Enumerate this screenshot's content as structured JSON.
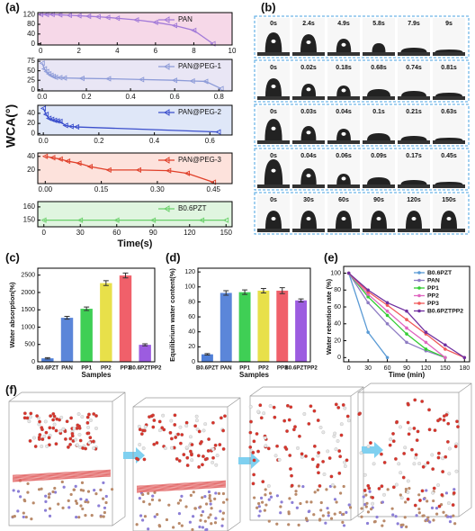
{
  "chart_data": [
    {
      "type": "line",
      "panel": "(a)",
      "ylabel": "WCA(°)",
      "background": "#f6d8e8",
      "x": [
        0,
        0.3,
        0.6,
        1,
        1.5,
        2,
        2.5,
        3,
        3.5,
        4,
        5,
        6,
        7,
        8,
        9
      ],
      "series": [
        {
          "name": "PAN",
          "color": "#a27ad8",
          "values": [
            120,
            120,
            120,
            119,
            117,
            115,
            113,
            111,
            108,
            105,
            98,
            88,
            75,
            55,
            0
          ]
        }
      ],
      "xlim": [
        -0.15,
        10
      ],
      "ylim": [
        -5,
        128
      ],
      "xticks": [
        0,
        2,
        4,
        6,
        8,
        10
      ],
      "yticks": [
        0,
        40,
        80,
        120
      ]
    },
    {
      "type": "line",
      "background": "#e9e6f5",
      "x": [
        0,
        0.01,
        0.02,
        0.03,
        0.04,
        0.05,
        0.06,
        0.08,
        0.1,
        0.18,
        0.3,
        0.45,
        0.6,
        0.68,
        0.74,
        0.81
      ],
      "series": [
        {
          "name": "PAN@PEG-1",
          "color": "#8d9bd8",
          "values": [
            70,
            55,
            48,
            42,
            38,
            35,
            33,
            32,
            31,
            30,
            29,
            27,
            25,
            23,
            22,
            3
          ]
        }
      ],
      "xlim": [
        -0.02,
        0.86
      ],
      "ylim": [
        -3,
        80
      ],
      "xticks": [
        {
          "value": 0,
          "label": "0.0"
        },
        0.2,
        0.4,
        0.6,
        0.8
      ],
      "yticks": [
        0,
        25,
        50,
        75
      ]
    },
    {
      "type": "line",
      "background": "#dfe7f8",
      "x": [
        0,
        0.01,
        0.02,
        0.03,
        0.04,
        0.05,
        0.06,
        0.08,
        0.1,
        0.12,
        0.63
      ],
      "series": [
        {
          "name": "PAN@PEG-2",
          "color": "#3b4fcc",
          "values": [
            50,
            38,
            30,
            28,
            26,
            25,
            24,
            16,
            14,
            13,
            3
          ]
        }
      ],
      "xlim": [
        -0.02,
        0.68
      ],
      "ylim": [
        -3,
        56
      ],
      "xticks": [
        {
          "value": 0,
          "label": "0.0"
        },
        0.2,
        0.4,
        0.6
      ],
      "yticks": [
        0,
        20,
        40
      ]
    },
    {
      "type": "line",
      "background": "#fde2dc",
      "x": [
        0,
        0.02,
        0.04,
        0.06,
        0.09,
        0.12,
        0.17,
        0.25,
        0.33,
        0.38,
        0.45
      ],
      "series": [
        {
          "name": "PAN@PEG-3",
          "color": "#e0402a",
          "values": [
            40,
            38,
            36,
            33,
            30,
            25,
            20,
            20,
            19,
            15,
            2
          ]
        }
      ],
      "xlim": [
        -0.02,
        0.5
      ],
      "ylim": [
        0,
        45
      ],
      "xticks": [
        {
          "value": 0,
          "label": "0.00"
        },
        0.15,
        {
          "value": 0.3,
          "label": "0.30"
        },
        0.45
      ],
      "yticks": [
        20,
        40
      ]
    },
    {
      "type": "line",
      "xlabel": "Time(s)",
      "background": "#e0f5e0",
      "x": [
        0,
        30,
        60,
        90,
        130,
        150
      ],
      "series": [
        {
          "name": "B0.6PZT",
          "color": "#6ad06a",
          "values": [
            150,
            150,
            150,
            150,
            150,
            150
          ]
        }
      ],
      "xlim": [
        -5,
        155
      ],
      "ylim": [
        145,
        164
      ],
      "xticks": [
        0,
        30,
        60,
        90,
        120,
        150
      ],
      "yticks": [
        150,
        160
      ]
    },
    {
      "type": "bar",
      "panel": "(c)",
      "ylabel": "Water absorption(%)",
      "xlabel": "Samples",
      "categories": [
        "B0.6PZT",
        "PAN",
        "PP1",
        "PP2",
        "PP3",
        "B0.6PZTPP2"
      ],
      "values": [
        100,
        1270,
        1530,
        2270,
        2490,
        490
      ],
      "errors": [
        20,
        40,
        50,
        70,
        70,
        30
      ],
      "colors": [
        "#4f7fd8",
        "#5b86d9",
        "#3fcf55",
        "#e8e04a",
        "#f0606a",
        "#9c5ce0"
      ],
      "ylim": [
        0,
        2700
      ],
      "yticks": [
        0,
        500,
        1000,
        1500,
        2000,
        2500
      ]
    },
    {
      "type": "bar",
      "panel": "(d)",
      "ylabel": "Equilibrium water content(%)",
      "xlabel": "Samples",
      "categories": [
        "B0.6PZT",
        "PAN",
        "PP1",
        "PP2",
        "PP3",
        "B0.6PZTPP2"
      ],
      "values": [
        10,
        92,
        93,
        95,
        95,
        82
      ],
      "errors": [
        1,
        3,
        3,
        3,
        4,
        2
      ],
      "colors": [
        "#4f7fd8",
        "#5b86d9",
        "#3fcf55",
        "#e8e04a",
        "#f0606a",
        "#9c5ce0"
      ],
      "ylim": [
        0,
        125
      ],
      "yticks": [
        0,
        20,
        40,
        60,
        80,
        100,
        120
      ]
    },
    {
      "type": "line",
      "panel": "(e)",
      "ylabel": "Water retention rate (%)",
      "xlabel": "Time (min)",
      "legend": "upper right",
      "x": [
        0,
        30,
        60,
        90,
        120,
        150,
        180
      ],
      "series": [
        {
          "name": "B0.6PZT",
          "color": "#5b9bd5",
          "values": [
            100,
            30,
            0,
            null,
            null,
            null,
            null
          ]
        },
        {
          "name": "PAN",
          "color": "#8e7cc3",
          "values": [
            100,
            65,
            40,
            18,
            8,
            0,
            null
          ]
        },
        {
          "name": "PP1",
          "color": "#33cc33",
          "values": [
            100,
            72,
            50,
            28,
            10,
            0,
            null
          ]
        },
        {
          "name": "PP2",
          "color": "#e066c0",
          "values": [
            100,
            75,
            55,
            35,
            18,
            0,
            null
          ]
        },
        {
          "name": "PP3",
          "color": "#f05a5a",
          "values": [
            100,
            78,
            62,
            45,
            28,
            10,
            0
          ]
        },
        {
          "name": "B0.6PZTPP2",
          "color": "#7030a0",
          "values": [
            100,
            80,
            65,
            55,
            30,
            15,
            0
          ]
        }
      ],
      "xlim": [
        -8,
        188
      ],
      "ylim": [
        -5,
        108
      ],
      "xticks": [
        0,
        30,
        60,
        90,
        120,
        150,
        180
      ],
      "yticks": [
        0,
        20,
        40,
        60,
        80,
        100
      ]
    }
  ],
  "panel_b": {
    "label": "(b)",
    "rows": [
      [
        "0s",
        "2.4s",
        "4.9s",
        "5.8s",
        "7.9s",
        "9s"
      ],
      [
        "0s",
        "0.02s",
        "0.18s",
        "0.68s",
        "0.74s",
        "0.81s"
      ],
      [
        "0s",
        "0.03s",
        "0.04s",
        "0.1s",
        "0.21s",
        "0.63s"
      ],
      [
        "0s",
        "0.04s",
        "0.06s",
        "0.09s",
        "0.17s",
        "0.45s"
      ],
      [
        "0s",
        "30s",
        "60s",
        "90s",
        "120s",
        "150s"
      ]
    ]
  },
  "panel_f": {
    "label": "(f)"
  }
}
